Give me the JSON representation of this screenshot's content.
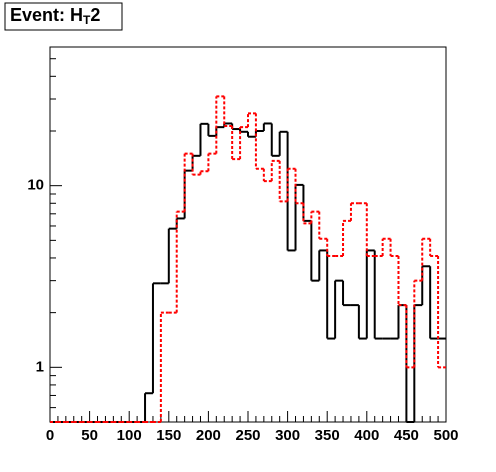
{
  "chart_data": {
    "type": "histogram",
    "title": [
      "Event: H",
      "T",
      "2"
    ],
    "bins": [
      0,
      10,
      20,
      30,
      40,
      50,
      60,
      70,
      80,
      90,
      100,
      110,
      120,
      130,
      140,
      150,
      160,
      170,
      180,
      190,
      200,
      210,
      220,
      230,
      240,
      250,
      260,
      270,
      280,
      290,
      300,
      310,
      320,
      330,
      340,
      350,
      360,
      370,
      380,
      390,
      400,
      410,
      420,
      430,
      440,
      450,
      460,
      470,
      480,
      490,
      500
    ],
    "series": [
      {
        "color": "#000000",
        "dash": false,
        "values": [
          0,
          0,
          0,
          0,
          0,
          0,
          0,
          0,
          0,
          0,
          0,
          0,
          0.72,
          2.9,
          2.9,
          5.8,
          6.6,
          12.1,
          14.6,
          21.9,
          18.8,
          21,
          22,
          20.5,
          19.8,
          18.6,
          20,
          22,
          14.6,
          19.8,
          4.4,
          10.1,
          6.4,
          3.0,
          4.4,
          1.44,
          3.0,
          2.2,
          2.2,
          1.44,
          4.4,
          1.44,
          1.44,
          1.44,
          2.2,
          0,
          2.2,
          3.6,
          1.44,
          1.44
        ]
      },
      {
        "color": "#ff0000",
        "dash": true,
        "values": [
          0,
          0,
          0,
          0,
          0,
          0,
          0,
          0,
          0,
          0,
          0,
          0,
          0,
          0,
          2.0,
          2.0,
          7.2,
          15,
          11.5,
          12,
          15,
          31,
          21.3,
          14,
          21,
          25,
          12.4,
          10.6,
          13.7,
          8.2,
          12.4,
          8.0,
          6.2,
          7.2,
          5.1,
          4.1,
          4.1,
          6.4,
          8.0,
          8.0,
          4.1,
          4.1,
          5.1,
          4.1,
          2.2,
          1.0,
          3.0,
          5.1,
          4.1,
          1.0
        ]
      }
    ],
    "xlim": [
      0,
      500
    ],
    "xticks": [
      0,
      50,
      100,
      150,
      200,
      250,
      300,
      350,
      400,
      450,
      500
    ],
    "ylim": [
      0.5,
      58
    ],
    "yticks": [
      1,
      10
    ],
    "log_y": true
  }
}
